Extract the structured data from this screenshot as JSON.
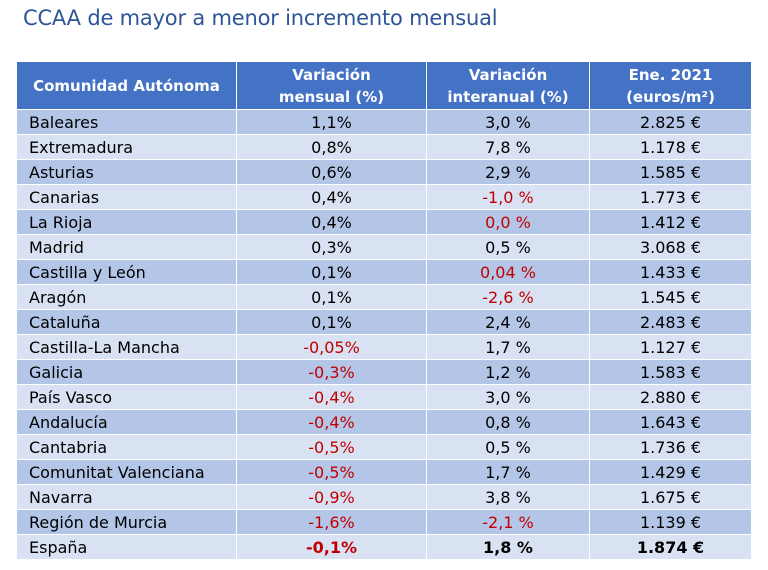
{
  "title": "CCAA de mayor a menor incremento mensual",
  "colors": {
    "header": "#4472c4",
    "row_dark": "#b4c6e7",
    "row_light": "#d9e2f3",
    "negative": "#c00000",
    "title": "#2f5597"
  },
  "headers": {
    "region": "Comunidad Autónoma",
    "monthly_l1": "Variación",
    "monthly_l2": "mensual (%)",
    "annual_l1": "Variación",
    "annual_l2": "interanual (%)",
    "price_l1": "Ene. 2021",
    "price_l2": "(euros/m²)"
  },
  "rows": [
    {
      "region": "Baleares",
      "monthly": "1,1%",
      "annual": "3,0 %",
      "price": "2.825 €"
    },
    {
      "region": "Extremadura",
      "monthly": "0,8%",
      "annual": "7,8 %",
      "price": "1.178 €"
    },
    {
      "region": "Asturias",
      "monthly": "0,6%",
      "annual": "2,9 %",
      "price": "1.585 €"
    },
    {
      "region": "Canarias",
      "monthly": "0,4%",
      "annual": "-1,0 %",
      "price": "1.773 €"
    },
    {
      "region": "La Rioja",
      "monthly": "0,4%",
      "annual": "0,0 %",
      "price": "1.412 €"
    },
    {
      "region": "Madrid",
      "monthly": "0,3%",
      "annual": "0,5 %",
      "price": "3.068 €"
    },
    {
      "region": "Castilla y León",
      "monthly": "0,1%",
      "annual": "0,04 %",
      "price": "1.433 €"
    },
    {
      "region": "Aragón",
      "monthly": "0,1%",
      "annual": "-2,6 %",
      "price": "1.545 €"
    },
    {
      "region": "Cataluña",
      "monthly": "0,1%",
      "annual": "2,4 %",
      "price": "2.483 €"
    },
    {
      "region": "Castilla-La Mancha",
      "monthly": "-0,05%",
      "annual": "1,7 %",
      "price": "1.127 €"
    },
    {
      "region": "Galicia",
      "monthly": "-0,3%",
      "annual": "1,2 %",
      "price": "1.583 €"
    },
    {
      "region": "País Vasco",
      "monthly": "-0,4%",
      "annual": "3,0 %",
      "price": "2.880 €"
    },
    {
      "region": "Andalucía",
      "monthly": "-0,4%",
      "annual": "0,8 %",
      "price": "1.643 €"
    },
    {
      "region": "Cantabria",
      "monthly": "-0,5%",
      "annual": "0,5 %",
      "price": "1.736 €"
    },
    {
      "region": "Comunitat Valenciana",
      "monthly": "-0,5%",
      "annual": "1,7 %",
      "price": "1.429 €"
    },
    {
      "region": "Navarra",
      "monthly": "-0,9%",
      "annual": "3,8 %",
      "price": "1.675 €"
    },
    {
      "region": "Región de Murcia",
      "monthly": "-1,6%",
      "annual": "-2,1 %",
      "price": "1.139 €"
    }
  ],
  "total": {
    "region": "España",
    "monthly": "-0,1%",
    "annual": "1,8 %",
    "price": "1.874 €"
  }
}
